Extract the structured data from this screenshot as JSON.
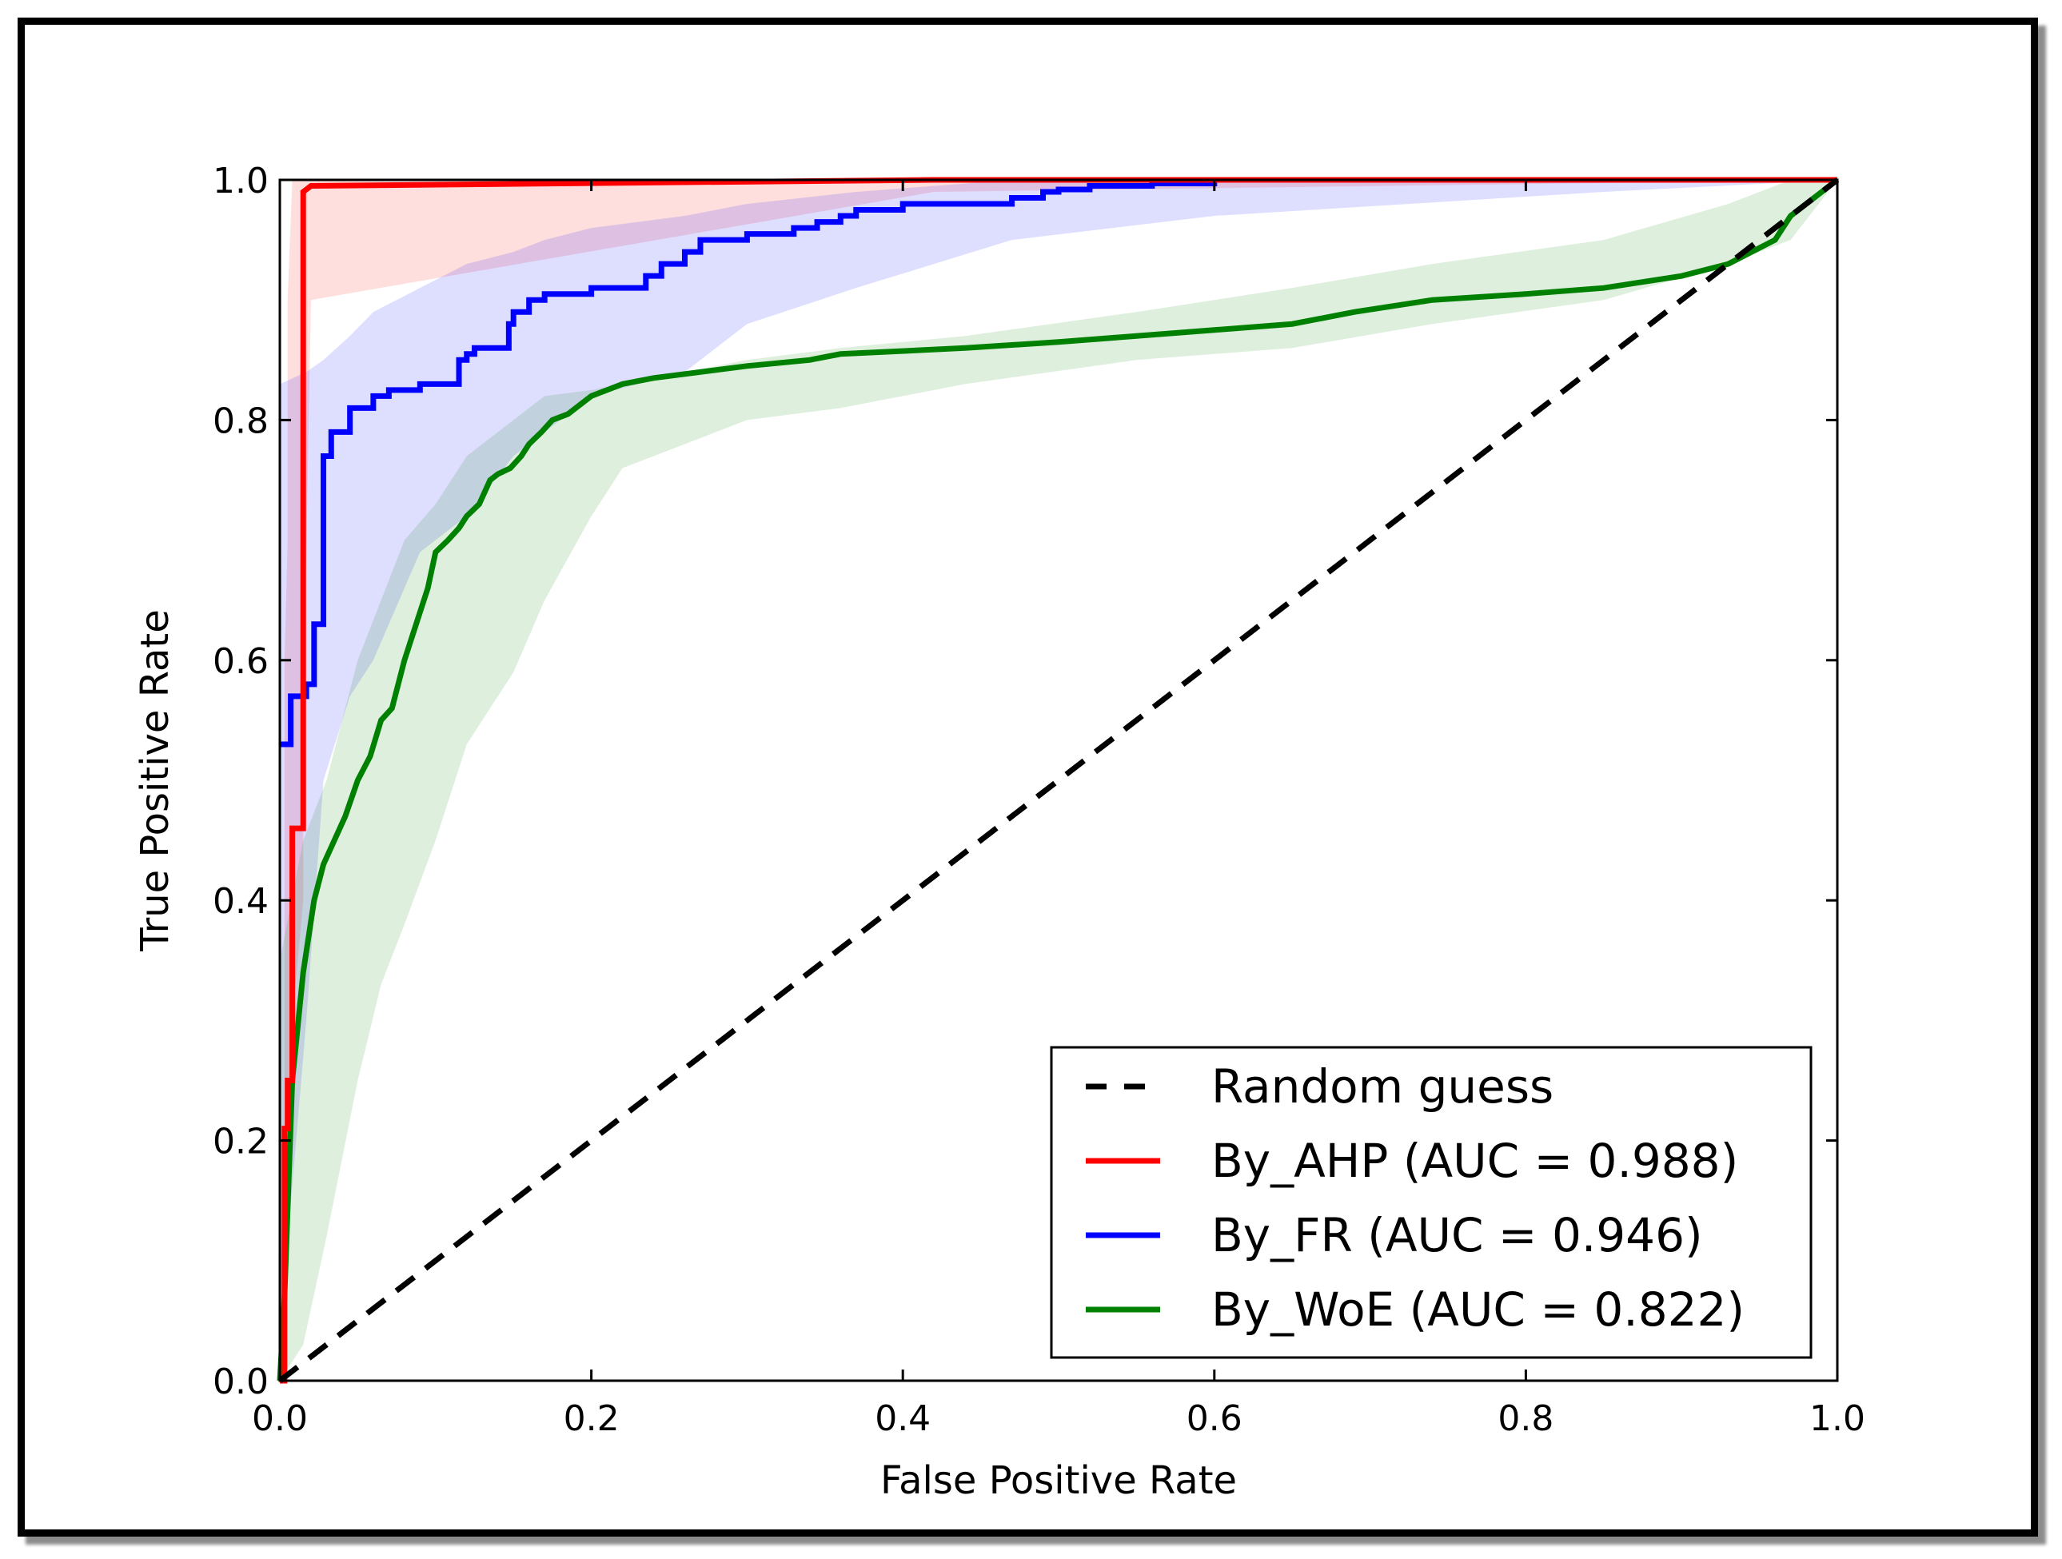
{
  "chart_data": {
    "type": "line",
    "title": "",
    "xlabel": "False Positive Rate",
    "ylabel": "True Positive Rate",
    "xlim": [
      0.0,
      1.0
    ],
    "ylim": [
      0.0,
      1.0
    ],
    "xticks": [
      "0.0",
      "0.2",
      "0.4",
      "0.6",
      "0.8",
      "1.0"
    ],
    "yticks": [
      "0.0",
      "0.2",
      "0.4",
      "0.6",
      "0.8",
      "1.0"
    ],
    "grid": false,
    "legend_position": "lower-right",
    "series": [
      {
        "name": "Random guess",
        "color": "#000000",
        "style": "dashed",
        "x": [
          0.0,
          1.0
        ],
        "y": [
          0.0,
          1.0
        ]
      },
      {
        "name": "By_AHP (AUC = 0.988)",
        "color": "#ff0000",
        "style": "solid",
        "x": [
          0.0,
          0.003,
          0.003,
          0.005,
          0.005,
          0.008,
          0.008,
          0.015,
          0.015,
          0.02,
          0.42,
          1.0
        ],
        "y": [
          0.0,
          0.0,
          0.21,
          0.21,
          0.25,
          0.25,
          0.46,
          0.46,
          0.99,
          0.995,
          1.0,
          1.0
        ],
        "band_upper": [
          0.07,
          0.2,
          0.6,
          0.7,
          0.9,
          1.0,
          1.0,
          1.0,
          1.0,
          1.0,
          1.0,
          1.0
        ],
        "band_lower": [
          0.0,
          0.0,
          0.0,
          0.05,
          0.1,
          0.2,
          0.3,
          0.4,
          0.55,
          0.9,
          0.99,
          1.0
        ]
      },
      {
        "name": "By_FR (AUC = 0.946)",
        "color": "#0000ff",
        "style": "solid",
        "x": [
          0.0,
          0.007,
          0.007,
          0.017,
          0.017,
          0.022,
          0.022,
          0.028,
          0.028,
          0.033,
          0.033,
          0.045,
          0.045,
          0.06,
          0.06,
          0.07,
          0.07,
          0.09,
          0.09,
          0.115,
          0.115,
          0.12,
          0.12,
          0.125,
          0.125,
          0.147,
          0.147,
          0.15,
          0.15,
          0.16,
          0.16,
          0.17,
          0.17,
          0.2,
          0.2,
          0.235,
          0.235,
          0.245,
          0.245,
          0.26,
          0.26,
          0.27,
          0.27,
          0.3,
          0.3,
          0.33,
          0.33,
          0.345,
          0.345,
          0.36,
          0.36,
          0.37,
          0.37,
          0.4,
          0.4,
          0.47,
          0.47,
          0.49,
          0.49,
          0.5,
          0.5,
          0.52,
          0.52,
          0.56,
          0.56,
          0.6,
          0.6,
          0.65,
          0.78,
          1.0
        ],
        "y": [
          0.53,
          0.53,
          0.57,
          0.57,
          0.58,
          0.58,
          0.63,
          0.63,
          0.77,
          0.77,
          0.79,
          0.79,
          0.81,
          0.81,
          0.82,
          0.82,
          0.825,
          0.825,
          0.83,
          0.83,
          0.85,
          0.85,
          0.855,
          0.855,
          0.86,
          0.86,
          0.88,
          0.88,
          0.89,
          0.89,
          0.9,
          0.9,
          0.905,
          0.905,
          0.91,
          0.91,
          0.92,
          0.92,
          0.93,
          0.93,
          0.94,
          0.94,
          0.95,
          0.95,
          0.955,
          0.955,
          0.96,
          0.96,
          0.965,
          0.965,
          0.97,
          0.97,
          0.975,
          0.975,
          0.98,
          0.98,
          0.985,
          0.985,
          0.99,
          0.99,
          0.992,
          0.992,
          0.995,
          0.995,
          0.997,
          0.997,
          1.0,
          1.0,
          1.0,
          1.0
        ],
        "band_x": [
          0.0,
          0.017,
          0.028,
          0.045,
          0.06,
          0.09,
          0.12,
          0.15,
          0.17,
          0.2,
          0.26,
          0.3,
          0.37,
          0.47,
          0.6,
          0.85,
          1.0
        ],
        "band_upper": [
          0.83,
          0.84,
          0.85,
          0.87,
          0.89,
          0.91,
          0.93,
          0.94,
          0.95,
          0.96,
          0.97,
          0.98,
          0.99,
          1.0,
          1.0,
          1.0,
          1.0
        ],
        "band_lower": [
          0.04,
          0.3,
          0.5,
          0.57,
          0.6,
          0.69,
          0.72,
          0.77,
          0.79,
          0.82,
          0.84,
          0.88,
          0.91,
          0.95,
          0.97,
          0.99,
          1.0
        ]
      },
      {
        "name": "By_WoE (AUC = 0.822)",
        "color": "#008000",
        "style": "solid",
        "x": [
          0.0,
          0.003,
          0.003,
          0.008,
          0.008,
          0.015,
          0.015,
          0.022,
          0.022,
          0.028,
          0.028,
          0.035,
          0.035,
          0.042,
          0.042,
          0.05,
          0.05,
          0.058,
          0.058,
          0.065,
          0.065,
          0.072,
          0.072,
          0.08,
          0.08,
          0.09,
          0.09,
          0.095,
          0.095,
          0.1,
          0.1,
          0.108,
          0.108,
          0.115,
          0.115,
          0.12,
          0.12,
          0.128,
          0.128,
          0.135,
          0.135,
          0.14,
          0.14,
          0.148,
          0.148,
          0.155,
          0.155,
          0.16,
          0.16,
          0.168,
          0.168,
          0.175,
          0.175,
          0.185,
          0.185,
          0.19,
          0.19,
          0.2,
          0.2,
          0.21,
          0.21,
          0.22,
          0.22,
          0.24,
          0.24,
          0.27,
          0.27,
          0.3,
          0.3,
          0.34,
          0.34,
          0.36,
          0.36,
          0.44,
          0.44,
          0.5,
          0.5,
          0.55,
          0.55,
          0.6,
          0.6,
          0.65,
          0.65,
          0.69,
          0.69,
          0.74,
          0.74,
          0.8,
          0.8,
          0.85,
          0.85,
          0.9,
          0.9,
          0.93,
          0.93,
          0.96,
          0.96,
          0.97,
          0.97,
          1.0
        ],
        "y": [
          0.0,
          0.07,
          0.07,
          0.25,
          0.25,
          0.34,
          0.34,
          0.4,
          0.4,
          0.43,
          0.43,
          0.45,
          0.45,
          0.47,
          0.47,
          0.5,
          0.5,
          0.52,
          0.52,
          0.55,
          0.55,
          0.56,
          0.56,
          0.6,
          0.6,
          0.64,
          0.64,
          0.66,
          0.66,
          0.69,
          0.69,
          0.7,
          0.7,
          0.71,
          0.71,
          0.72,
          0.72,
          0.73,
          0.73,
          0.75,
          0.75,
          0.755,
          0.755,
          0.76,
          0.76,
          0.77,
          0.77,
          0.78,
          0.78,
          0.79,
          0.79,
          0.8,
          0.8,
          0.805,
          0.805,
          0.81,
          0.81,
          0.82,
          0.82,
          0.825,
          0.825,
          0.83,
          0.83,
          0.835,
          0.835,
          0.84,
          0.84,
          0.845,
          0.845,
          0.85,
          0.85,
          0.855,
          0.855,
          0.86,
          0.86,
          0.865,
          0.865,
          0.87,
          0.87,
          0.875,
          0.875,
          0.88,
          0.88,
          0.89,
          0.89,
          0.9,
          0.9,
          0.905,
          0.905,
          0.91,
          0.91,
          0.92,
          0.92,
          0.93,
          0.93,
          0.95,
          0.95,
          0.97,
          0.97,
          1.0
        ],
        "band_x": [
          0.0,
          0.015,
          0.03,
          0.05,
          0.065,
          0.08,
          0.1,
          0.12,
          0.15,
          0.17,
          0.2,
          0.22,
          0.26,
          0.3,
          0.36,
          0.44,
          0.55,
          0.65,
          0.74,
          0.85,
          0.93,
          0.97,
          1.0
        ],
        "band_upper": [
          0.35,
          0.45,
          0.5,
          0.6,
          0.65,
          0.7,
          0.73,
          0.77,
          0.8,
          0.82,
          0.825,
          0.83,
          0.84,
          0.85,
          0.86,
          0.87,
          0.89,
          0.91,
          0.93,
          0.95,
          0.98,
          1.0,
          1.0
        ],
        "band_lower": [
          0.0,
          0.03,
          0.12,
          0.25,
          0.33,
          0.38,
          0.45,
          0.53,
          0.59,
          0.65,
          0.72,
          0.76,
          0.78,
          0.8,
          0.81,
          0.83,
          0.85,
          0.86,
          0.88,
          0.9,
          0.93,
          0.95,
          1.0
        ]
      }
    ]
  }
}
